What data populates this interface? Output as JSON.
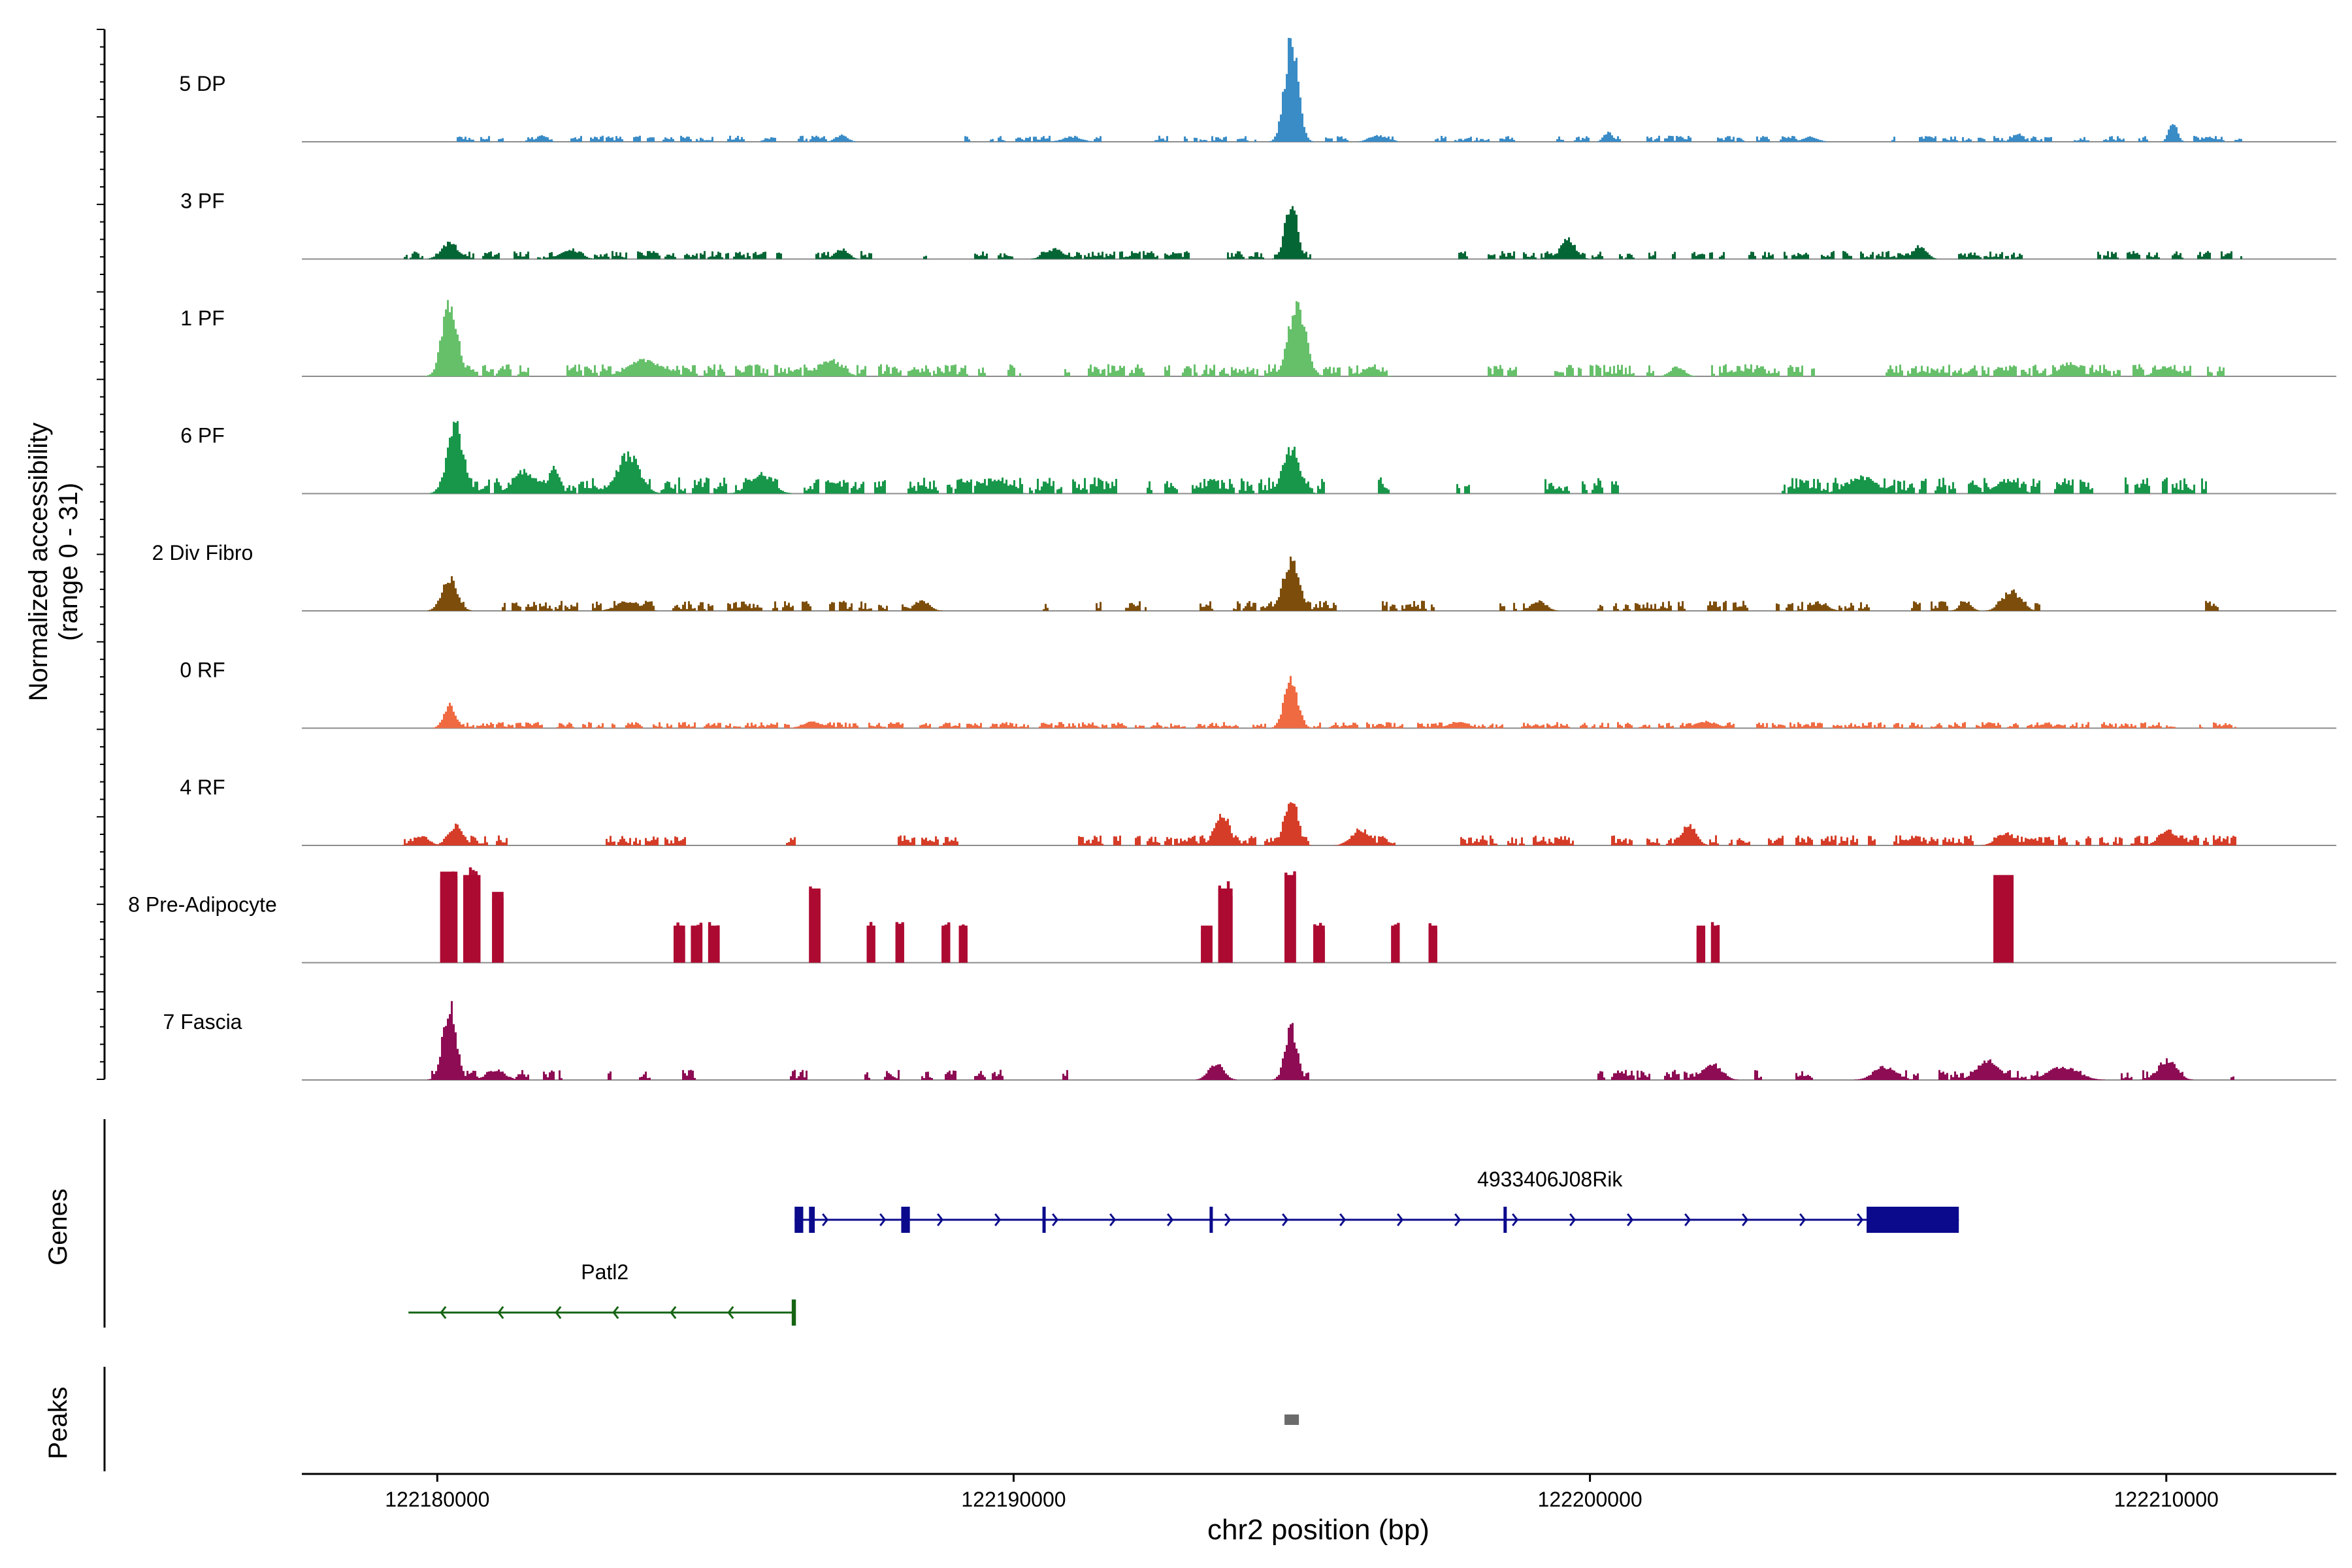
{
  "chart_data": {
    "type": "area",
    "title": "",
    "xlabel": "chr2 position (bp)",
    "ylabel": "Normalized accessibility",
    "ylabel_sub": "(range 0 - 31)",
    "ylim": [
      0,
      31
    ],
    "xlim": [
      122177650,
      122212950
    ],
    "x_ticks": [
      122180000,
      122190000,
      122200000,
      122210000
    ],
    "x_tick_labels": [
      "122180000",
      "122190000",
      "122200000",
      "122210000"
    ],
    "tracks": [
      {
        "name": "5 DP",
        "color": "#3a8cc7",
        "peaks": [
          [
            122194800,
            31,
            180
          ],
          [
            122196300,
            2,
            220
          ],
          [
            122200300,
            3,
            120
          ],
          [
            122210100,
            6,
            110
          ],
          [
            122181800,
            2,
            140
          ],
          [
            122187000,
            2,
            160
          ],
          [
            122191000,
            1.5,
            250
          ],
          [
            122203800,
            1.5,
            200
          ],
          [
            122207400,
            2.5,
            150
          ]
        ],
        "noise": 1.5,
        "density": 0.55,
        "regions": [
          [
            122180100,
            122187000
          ],
          [
            122188900,
            122191500
          ],
          [
            122192400,
            122194200
          ],
          [
            122195200,
            122198800
          ],
          [
            122199400,
            122203600
          ],
          [
            122205200,
            122208000
          ],
          [
            122208300,
            122210300
          ],
          [
            122210400,
            122211300
          ]
        ]
      },
      {
        "name": "3 PF",
        "color": "#046635",
        "peaks": [
          [
            122194800,
            18,
            160
          ],
          [
            122180200,
            5,
            220
          ],
          [
            122199600,
            6,
            200
          ],
          [
            122205700,
            4,
            180
          ],
          [
            122182300,
            3,
            250
          ],
          [
            122187000,
            3,
            180
          ],
          [
            122190700,
            3,
            250
          ]
        ],
        "noise": 2,
        "density": 0.6,
        "regions": [
          [
            122179400,
            122188600
          ],
          [
            122189300,
            122193100
          ],
          [
            122193600,
            122195200
          ],
          [
            122197700,
            122199900
          ],
          [
            122200000,
            122207500
          ],
          [
            122208500,
            122211300
          ]
        ]
      },
      {
        "name": "1 PF",
        "color": "#66c06a",
        "peaks": [
          [
            122180200,
            23,
            200
          ],
          [
            122194900,
            22,
            230
          ],
          [
            122183600,
            5,
            450
          ],
          [
            122186800,
            5,
            300
          ],
          [
            122196200,
            3,
            200
          ],
          [
            122201500,
            3,
            180
          ],
          [
            122208300,
            4,
            250
          ],
          [
            122210000,
            3,
            280
          ]
        ],
        "noise": 3,
        "density": 0.8,
        "regions": [
          [
            122180000,
            122190100
          ],
          [
            122190800,
            122196600
          ],
          [
            122198200,
            122201100
          ],
          [
            122202000,
            122203900
          ],
          [
            122205000,
            122209200
          ],
          [
            122209400,
            122211000
          ]
        ]
      },
      {
        "name": "6 PF",
        "color": "#18974a",
        "peaks": [
          [
            122180300,
            21,
            220
          ],
          [
            122183300,
            12,
            300
          ],
          [
            122194800,
            14,
            220
          ],
          [
            122181500,
            7,
            300
          ],
          [
            122185600,
            6,
            300
          ],
          [
            122182000,
            8,
            150
          ],
          [
            122204700,
            5,
            400
          ],
          [
            122207200,
            4,
            300
          ],
          [
            122189700,
            4,
            280
          ]
        ],
        "noise": 4,
        "density": 0.85,
        "regions": [
          [
            122179900,
            122185900
          ],
          [
            122186300,
            122191800
          ],
          [
            122192300,
            122195400
          ],
          [
            122196300,
            122196500
          ],
          [
            122197600,
            122197900
          ],
          [
            122199000,
            122200500
          ],
          [
            122202100,
            122202200
          ],
          [
            122203300,
            122208700
          ],
          [
            122209200,
            122210700
          ]
        ]
      },
      {
        "name": "2 Div Fibro",
        "color": "#7d4e0b",
        "peaks": [
          [
            122194800,
            15,
            220
          ],
          [
            122180200,
            10,
            200
          ],
          [
            122207300,
            6,
            250
          ],
          [
            122188400,
            3,
            200
          ],
          [
            122183300,
            3,
            300
          ],
          [
            122204000,
            2,
            200
          ],
          [
            122199100,
            3,
            200
          ],
          [
            122206500,
            3,
            150
          ]
        ],
        "noise": 2.5,
        "density": 0.75,
        "regions": [
          [
            122180100,
            122180500
          ],
          [
            122181100,
            122188400
          ],
          [
            122190200,
            122190600
          ],
          [
            122191400,
            122192300
          ],
          [
            122193100,
            122195800
          ],
          [
            122196300,
            122197300
          ],
          [
            122198400,
            122198900
          ],
          [
            122200100,
            122201700
          ],
          [
            122201900,
            122205000
          ],
          [
            122205500,
            122207800
          ],
          [
            122210600,
            122210900
          ]
        ]
      },
      {
        "name": "0 RF",
        "color": "#f06a41",
        "peaks": [
          [
            122194800,
            15,
            180
          ],
          [
            122180200,
            7,
            160
          ],
          [
            122186500,
            2,
            250
          ],
          [
            122197700,
            2,
            250
          ],
          [
            122202000,
            2,
            300
          ]
        ],
        "noise": 1.5,
        "density": 0.85,
        "regions": [
          [
            122180000,
            122211200
          ]
        ]
      },
      {
        "name": "4 RF",
        "color": "#d63d28",
        "peaks": [
          [
            122194800,
            16,
            170
          ],
          [
            122193600,
            10,
            200
          ],
          [
            122180300,
            6,
            200
          ],
          [
            122196000,
            5,
            240
          ],
          [
            122201700,
            6,
            200
          ],
          [
            122210000,
            5,
            220
          ],
          [
            122207200,
            4,
            240
          ],
          [
            122179700,
            3,
            200
          ]
        ],
        "noise": 2.5,
        "density": 0.8,
        "regions": [
          [
            122179400,
            122181200
          ],
          [
            122182000,
            122182100
          ],
          [
            122182700,
            122184300
          ],
          [
            122185800,
            122185900
          ],
          [
            122186000,
            122186200
          ],
          [
            122187900,
            122189100
          ],
          [
            122191000,
            122195100
          ],
          [
            122195800,
            122196600
          ],
          [
            122197700,
            122199700
          ],
          [
            122200300,
            122211200
          ]
        ]
      },
      {
        "name": "8 Pre-Adipocyte",
        "color": "#ad0a32",
        "peaks": [],
        "noise": 0,
        "density": 0,
        "blocks": [
          [
            122180050,
            122180350,
            27
          ],
          [
            122180450,
            122180750,
            26
          ],
          [
            122180950,
            122181150,
            21
          ],
          [
            122184100,
            122184300,
            11
          ],
          [
            122184400,
            122184600,
            11
          ],
          [
            122184700,
            122184900,
            11
          ],
          [
            122186450,
            122186650,
            22
          ],
          [
            122187450,
            122187600,
            11
          ],
          [
            122187950,
            122188100,
            11
          ],
          [
            122188750,
            122188900,
            11
          ],
          [
            122189050,
            122189200,
            11
          ],
          [
            122193250,
            122193450,
            11
          ],
          [
            122193550,
            122193800,
            22
          ],
          [
            122194700,
            122194900,
            26
          ],
          [
            122195200,
            122195400,
            11
          ],
          [
            122196550,
            122196700,
            11
          ],
          [
            122197200,
            122197350,
            11
          ],
          [
            122201850,
            122202000,
            11
          ],
          [
            122202100,
            122202250,
            11
          ],
          [
            122207000,
            122207350,
            26
          ]
        ]
      },
      {
        "name": "7 Fascia",
        "color": "#8d0c54",
        "peaks": [
          [
            122180200,
            23,
            180
          ],
          [
            122194800,
            16,
            160
          ],
          [
            122193500,
            5,
            200
          ],
          [
            122202100,
            5,
            250
          ],
          [
            122206900,
            6,
            300
          ],
          [
            122210000,
            6,
            250
          ],
          [
            122205100,
            4,
            300
          ],
          [
            122208200,
            4,
            400
          ],
          [
            122181000,
            3,
            250
          ]
        ],
        "noise": 2.5,
        "density": 0.75,
        "regions": [
          [
            122179800,
            122181200
          ],
          [
            122181300,
            122182200
          ],
          [
            122182800,
            122183000
          ],
          [
            122183400,
            122183900
          ],
          [
            122184200,
            122184500
          ],
          [
            122186100,
            122186400
          ],
          [
            122187400,
            122187500
          ],
          [
            122187700,
            122188000
          ],
          [
            122188100,
            122188600
          ],
          [
            122188800,
            122189000
          ],
          [
            122189300,
            122189800
          ],
          [
            122190800,
            122191000
          ],
          [
            122193300,
            122193700
          ],
          [
            122194500,
            122195100
          ],
          [
            122198400,
            122198600
          ],
          [
            122200100,
            122202600
          ],
          [
            122202800,
            122203000
          ],
          [
            122203500,
            122204000
          ],
          [
            122204800,
            122208500
          ],
          [
            122209200,
            122210300
          ],
          [
            122210900,
            122211200
          ]
        ]
      }
    ],
    "genes": [
      {
        "name": "4933406J08Rik",
        "strand": "+",
        "color": "#0b0a8c",
        "start": 122186200,
        "end": 122206400,
        "exons": [
          [
            122186200,
            122186350
          ],
          [
            122186450,
            122186550
          ],
          [
            122188050,
            122188200
          ],
          [
            122190500,
            122190550
          ],
          [
            122193400,
            122193450
          ],
          [
            122198500,
            122198550
          ],
          [
            122204800,
            122206400
          ]
        ]
      },
      {
        "name": "Patl2",
        "strand": "-",
        "color": "#156413",
        "start": 122179500,
        "end": 122186200,
        "exons": [
          [
            122186150,
            122186200
          ]
        ]
      }
    ],
    "peaks_track": {
      "color": "#6b6b6b",
      "regions": [
        [
          122194700,
          122194950
        ]
      ]
    },
    "panel_labels": {
      "genes": "Genes",
      "peaks": "Peaks"
    }
  }
}
